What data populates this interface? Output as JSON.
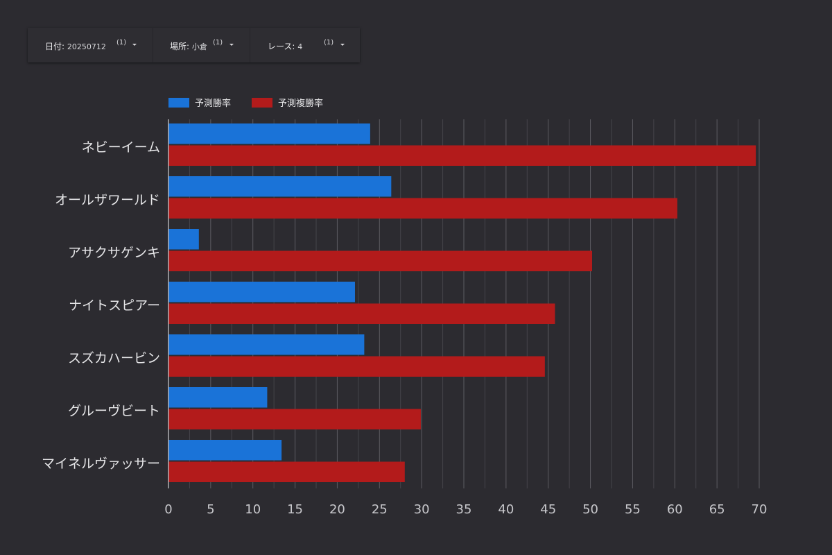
{
  "filters": [
    {
      "label": "日付",
      "value": "20250712",
      "count": "(1)"
    },
    {
      "label": "場所",
      "value": "小倉",
      "count": "(1)"
    },
    {
      "label": "レース",
      "value": "4",
      "count": "(1)"
    }
  ],
  "colors": {
    "win": "#1a73d8",
    "place": "#b31b1b",
    "grid": "#56555b",
    "text": "#e6e6e8",
    "axis": "#c8c8cc"
  },
  "chart_data": {
    "type": "bar",
    "orientation": "horizontal",
    "categories": [
      "ネビーイーム",
      "オールザワールド",
      "アサクサゲンキ",
      "ナイトスピアー",
      "スズカハービン",
      "グルーヴビート",
      "マイネルヴァッサー"
    ],
    "series": [
      {
        "name": "予測勝率",
        "values": [
          23.9,
          26.4,
          3.6,
          22.1,
          23.2,
          11.7,
          13.4
        ]
      },
      {
        "name": "予測複勝率",
        "values": [
          69.6,
          60.3,
          50.2,
          45.8,
          44.6,
          29.9,
          28.0
        ]
      }
    ],
    "xlim": [
      0,
      70
    ],
    "xticks": [
      0,
      5,
      10,
      15,
      20,
      25,
      30,
      35,
      40,
      45,
      50,
      55,
      60,
      65,
      70
    ],
    "grid": true,
    "legend": "top-left",
    "xlabel": "",
    "ylabel": ""
  }
}
